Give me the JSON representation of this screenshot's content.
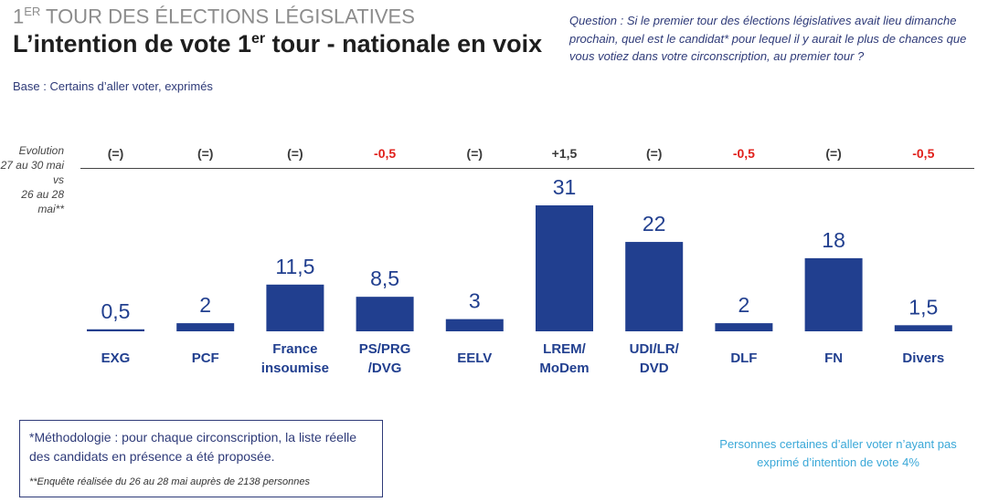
{
  "header": {
    "kicker_main": "1",
    "kicker_sup": "ER",
    "kicker_rest": " TOUR DES ÉLECTIONS LÉGISLATIVES",
    "title_main": "L’intention de vote 1",
    "title_sup": "er",
    "title_rest": " tour - nationale en voix",
    "base": "Base : Certains d’aller voter, exprimés",
    "question": "Question : Si le premier tour des élections législatives avait lieu dimanche prochain, quel est le candidat* pour lequel il y aurait le plus de chances que vous votiez dans votre circonscription, au premier tour ?"
  },
  "evolution_label": "Evolution\n27 au 30 mai vs\n26 au 28 mai**",
  "chart_data": {
    "type": "bar",
    "categories": [
      "EXG",
      "PCF",
      "France\ninsoumise",
      "PS/PRG\n/DVG",
      "EELV",
      "LREM/\nMoDem",
      "UDI/LR/\nDVD",
      "DLF",
      "FN",
      "Divers"
    ],
    "values": [
      0.5,
      2,
      11.5,
      8.5,
      3,
      31,
      22,
      2,
      18,
      1.5
    ],
    "data_labels": [
      "0,5",
      "2",
      "11,5",
      "8,5",
      "3",
      "31",
      "22",
      "2",
      "18",
      "1,5"
    ],
    "evolution": [
      "(=)",
      "(=)",
      "(=)",
      "-0,5",
      "(=)",
      "+1,5",
      "(=)",
      "-0,5",
      "(=)",
      "-0,5"
    ],
    "ylim": [
      0,
      31
    ],
    "bar_color": "#213f8f",
    "negative_color": "#e0201b",
    "neutral_color": "#3a3a3a",
    "grid": false
  },
  "footer": {
    "methodology": "*Méthodologie : pour chaque circonscription, la liste réelle des candidats en présence a été proposée.",
    "survey_note": "**Enquête réalisée du 26 au 28 mai auprès de 2138 personnes",
    "side_note": "Personnes certaines d’aller voter n’ayant pas exprimé d’intention de vote 4%"
  }
}
